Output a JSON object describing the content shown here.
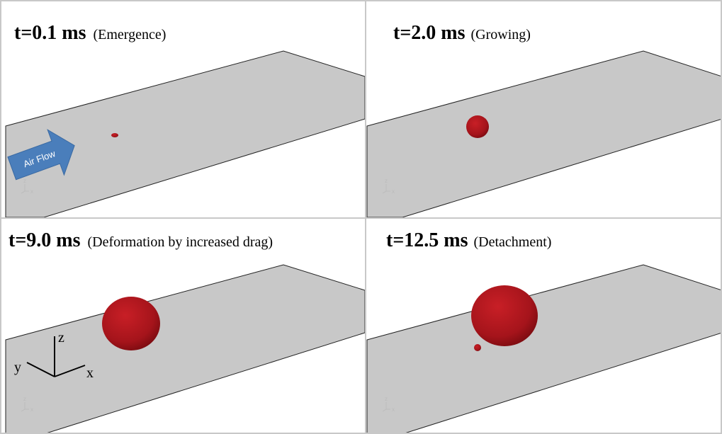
{
  "panels": [
    {
      "time": "t=0.1 ms",
      "caption": "(Emergence)"
    },
    {
      "time": "t=2.0 ms",
      "caption": "(Growing)"
    },
    {
      "time": "t=9.0 ms",
      "caption": "(Deformation by increased drag)"
    },
    {
      "time": "t=12.5 ms",
      "caption": "(Detachment)"
    }
  ],
  "arrow_label": "Air Flow",
  "axes": {
    "x": "x",
    "y": "y",
    "z": "z"
  },
  "mini_axes": {
    "x": "x",
    "z": "z"
  }
}
